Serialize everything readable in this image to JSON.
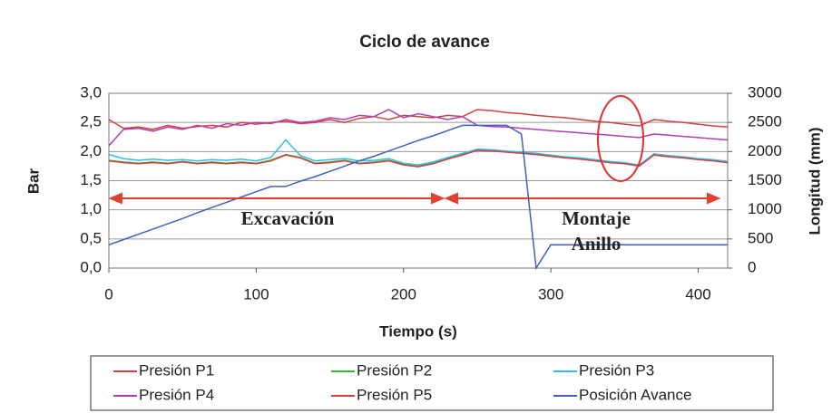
{
  "chart_data": {
    "type": "line",
    "title": "Ciclo de avance",
    "xlabel": "Tiempo (s)",
    "ylabel": "Bar",
    "y2label": "Longitud (mm)",
    "annotations": [
      "Excavación",
      "Montaje",
      "Anillo"
    ],
    "x": [
      0,
      10,
      20,
      30,
      40,
      50,
      60,
      70,
      80,
      90,
      100,
      110,
      120,
      130,
      140,
      150,
      160,
      170,
      180,
      190,
      200,
      210,
      220,
      230,
      240,
      250,
      260,
      270,
      280,
      290,
      300,
      310,
      320,
      330,
      340,
      350,
      360,
      370,
      380,
      390,
      400,
      410,
      420
    ],
    "xlim": [
      0,
      420
    ],
    "xticks": [
      0,
      100,
      200,
      300,
      400
    ],
    "ylim": [
      0,
      3
    ],
    "yticks": [
      {
        "value": 0,
        "label": "0,0"
      },
      {
        "value": 0.5,
        "label": "0,5"
      },
      {
        "value": 1,
        "label": "1,0"
      },
      {
        "value": 1.5,
        "label": "1,5"
      },
      {
        "value": 2,
        "label": "2,0"
      },
      {
        "value": 2.5,
        "label": "2,5"
      },
      {
        "value": 3,
        "label": "3,0"
      }
    ],
    "y2lim": [
      0,
      3000
    ],
    "y2ticks": [
      0,
      500,
      1000,
      1500,
      2000,
      2500,
      3000
    ],
    "grid": true,
    "legend": "bottom",
    "series": [
      {
        "name": "Presión P1",
        "color": "#d04040",
        "values": [
          2.55,
          2.4,
          2.42,
          2.38,
          2.45,
          2.4,
          2.43,
          2.45,
          2.42,
          2.5,
          2.47,
          2.5,
          2.52,
          2.48,
          2.5,
          2.55,
          2.5,
          2.57,
          2.6,
          2.55,
          2.62,
          2.6,
          2.58,
          2.62,
          2.6,
          2.72,
          2.7,
          2.67,
          2.65,
          2.62,
          2.6,
          2.58,
          2.55,
          2.52,
          2.5,
          2.47,
          2.44,
          2.55,
          2.52,
          2.5,
          2.47,
          2.44,
          2.42
        ]
      },
      {
        "name": "Presión P2",
        "color": "#33bb33",
        "values": [
          1.85,
          1.82,
          1.8,
          1.82,
          1.8,
          1.83,
          1.8,
          1.82,
          1.8,
          1.82,
          1.8,
          1.85,
          1.95,
          1.9,
          1.8,
          1.82,
          1.85,
          1.8,
          1.82,
          1.85,
          1.78,
          1.75,
          1.8,
          1.88,
          1.95,
          2.03,
          2.02,
          2.0,
          1.98,
          1.96,
          1.93,
          1.9,
          1.88,
          1.85,
          1.82,
          1.8,
          1.76,
          1.95,
          1.92,
          1.9,
          1.87,
          1.85,
          1.82
        ]
      },
      {
        "name": "Presión P3",
        "color": "#33bbee",
        "values": [
          1.95,
          1.88,
          1.85,
          1.87,
          1.85,
          1.86,
          1.84,
          1.86,
          1.85,
          1.87,
          1.84,
          1.9,
          2.2,
          1.93,
          1.84,
          1.86,
          1.88,
          1.84,
          1.85,
          1.88,
          1.8,
          1.77,
          1.82,
          1.9,
          1.97,
          2.04,
          2.03,
          2.01,
          1.99,
          1.97,
          1.94,
          1.91,
          1.89,
          1.86,
          1.83,
          1.81,
          1.77,
          1.96,
          1.93,
          1.91,
          1.88,
          1.86,
          1.83
        ]
      },
      {
        "name": "Presión P4",
        "color": "#b040b0",
        "values": [
          2.1,
          2.38,
          2.4,
          2.35,
          2.42,
          2.38,
          2.45,
          2.4,
          2.48,
          2.45,
          2.5,
          2.48,
          2.55,
          2.5,
          2.52,
          2.58,
          2.55,
          2.62,
          2.6,
          2.72,
          2.58,
          2.65,
          2.6,
          2.55,
          2.6,
          2.45,
          2.43,
          2.42,
          2.4,
          2.38,
          2.36,
          2.34,
          2.32,
          2.3,
          2.28,
          2.26,
          2.24,
          2.3,
          2.28,
          2.26,
          2.24,
          2.22,
          2.2
        ]
      },
      {
        "name": "Presión P5",
        "color": "#d04040",
        "values": [
          1.84,
          1.81,
          1.79,
          1.81,
          1.79,
          1.82,
          1.79,
          1.81,
          1.79,
          1.81,
          1.79,
          1.84,
          1.94,
          1.89,
          1.79,
          1.81,
          1.84,
          1.79,
          1.81,
          1.84,
          1.77,
          1.74,
          1.79,
          1.87,
          1.94,
          2.02,
          2.01,
          1.99,
          1.97,
          1.95,
          1.92,
          1.89,
          1.87,
          1.84,
          1.81,
          1.79,
          1.75,
          1.94,
          1.91,
          1.89,
          1.86,
          1.84,
          1.81
        ]
      },
      {
        "name": "Posición Avance",
        "color": "#4060c0",
        "axis": "y2",
        "values": [
          400,
          490,
          580,
          670,
          760,
          850,
          950,
          1040,
          1130,
          1220,
          1310,
          1400,
          1400,
          1490,
          1570,
          1660,
          1750,
          1840,
          1920,
          2010,
          2100,
          2190,
          2270,
          2360,
          2450,
          2450,
          2450,
          2450,
          2300,
          0,
          400,
          400,
          400,
          400,
          400,
          400,
          400,
          400,
          400,
          400,
          400,
          400,
          400
        ]
      }
    ]
  }
}
